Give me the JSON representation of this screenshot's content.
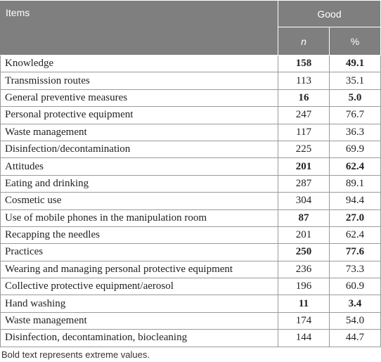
{
  "header": {
    "items": "Items",
    "good": "Good",
    "n": "n",
    "pct": "%"
  },
  "rows": [
    {
      "item": "Knowledge",
      "n": "158",
      "pct": "49.1",
      "bold": true
    },
    {
      "item": "Transmission routes",
      "n": "113",
      "pct": "35.1",
      "bold": false
    },
    {
      "item": "General preventive measures",
      "n": "16",
      "pct": "5.0",
      "bold": true
    },
    {
      "item": "Personal protective equipment",
      "n": "247",
      "pct": "76.7",
      "bold": false
    },
    {
      "item": "Waste management",
      "n": "117",
      "pct": "36.3",
      "bold": false
    },
    {
      "item": "Disinfection/decontamination",
      "n": "225",
      "pct": "69.9",
      "bold": false
    },
    {
      "item": "Attitudes",
      "n": "201",
      "pct": "62.4",
      "bold": true
    },
    {
      "item": "Eating and drinking",
      "n": "287",
      "pct": "89.1",
      "bold": false
    },
    {
      "item": "Cosmetic use",
      "n": "304",
      "pct": "94.4",
      "bold": false
    },
    {
      "item": "Use of mobile phones in the manipulation room",
      "n": "87",
      "pct": "27.0",
      "bold": true
    },
    {
      "item": "Recapping the needles",
      "n": "201",
      "pct": "62.4",
      "bold": false
    },
    {
      "item": "Practices",
      "n": "250",
      "pct": "77.6",
      "bold": true
    },
    {
      "item": "Wearing and managing personal protective equipment",
      "n": "236",
      "pct": "73.3",
      "bold": false
    },
    {
      "item": "Collective protective equipment/aerosol",
      "n": "196",
      "pct": "60.9",
      "bold": false
    },
    {
      "item": "Hand washing",
      "n": "11",
      "pct": "3.4",
      "bold": true
    },
    {
      "item": "Waste management",
      "n": "174",
      "pct": "54.0",
      "bold": false
    },
    {
      "item": "Disinfection, decontamination, biocleaning",
      "n": "144",
      "pct": "44.7",
      "bold": false
    }
  ],
  "footnote": "Bold text represents extreme values."
}
